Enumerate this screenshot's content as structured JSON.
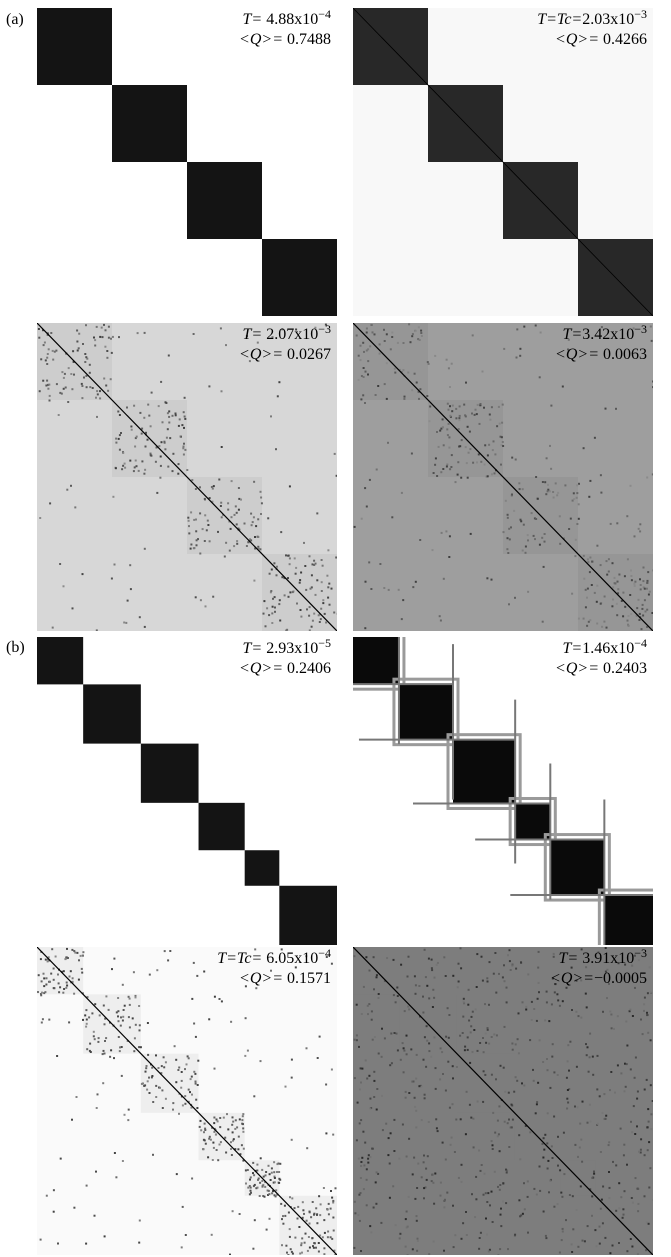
{
  "panel_labels": {
    "a": "(a)",
    "b": "(b)"
  },
  "matrices": [
    {
      "id": "a1",
      "panel": "a",
      "T_prefix": "T=",
      "T_value": "4.88x10",
      "T_exp": "−4",
      "Q_prefix": "<Q>=",
      "Q_value": "0.7488",
      "blocks": [
        100,
        100,
        100,
        100
      ],
      "style": "clean"
    },
    {
      "id": "a2",
      "panel": "a",
      "T_prefix": "T=Tc=",
      "T_value": "2.03x10",
      "T_exp": "−3",
      "Q_prefix": "<Q>=",
      "Q_value": "0.4266",
      "blocks": [
        100,
        100,
        100,
        100
      ],
      "style": "near"
    },
    {
      "id": "a3",
      "panel": "a",
      "T_prefix": "T=",
      "T_value": "2.07x10",
      "T_exp": "−3",
      "Q_prefix": "<Q>=",
      "Q_value": "0.0267",
      "blocks": [
        100,
        100,
        100,
        100
      ],
      "style": "noisy-light"
    },
    {
      "id": "a4",
      "panel": "a",
      "T_prefix": "T=",
      "T_value": "3.42x10",
      "T_exp": "−3",
      "Q_prefix": "<Q>=",
      "Q_value": "0.0063",
      "blocks": [
        100,
        100,
        100,
        100
      ],
      "style": "noisy-mid"
    },
    {
      "id": "b1",
      "panel": "b",
      "T_prefix": "T=",
      "T_value": "2.93x10",
      "T_exp": "−5",
      "Q_prefix": "<Q>=",
      "Q_value": "0.2406",
      "blocks": [
        20,
        25,
        25,
        20,
        15,
        25
      ],
      "style": "clean"
    },
    {
      "id": "b2",
      "panel": "b",
      "T_prefix": "T=",
      "T_value": "1.46x10",
      "T_exp": "−4",
      "Q_prefix": "<Q>=",
      "Q_value": "0.2403",
      "blocks": [
        17,
        20,
        23,
        13,
        20,
        18
      ],
      "style": "hierarchical"
    },
    {
      "id": "b3",
      "panel": "b",
      "T_prefix": "T=Tc=",
      "T_value": "6.05x10",
      "T_exp": "−4",
      "Q_prefix": "<Q>=",
      "Q_value": "0.1571",
      "blocks": [
        20,
        25,
        25,
        20,
        15,
        25
      ],
      "style": "scattered"
    },
    {
      "id": "b4",
      "panel": "b",
      "T_prefix": "T=",
      "T_value": "3.91x10",
      "T_exp": "−3",
      "Q_prefix": "<Q>=",
      "Q_value": "−0.0005",
      "blocks": [
        20,
        25,
        25,
        20,
        15,
        25
      ],
      "style": "random"
    }
  ]
}
